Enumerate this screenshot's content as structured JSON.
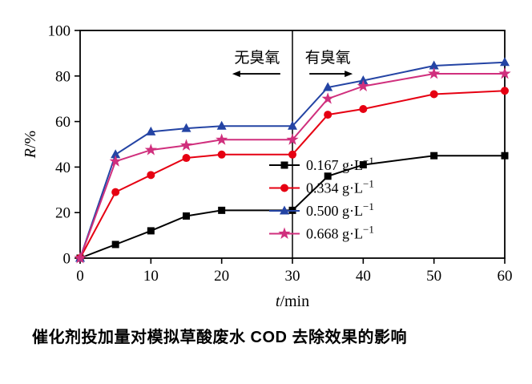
{
  "chart_data": {
    "type": "line",
    "title": "",
    "xlabel": "t/min",
    "ylabel": "R/%",
    "xlim": [
      0,
      60
    ],
    "ylim": [
      0,
      100
    ],
    "xticks": [
      0,
      10,
      20,
      30,
      40,
      50,
      60
    ],
    "yticks": [
      0,
      20,
      40,
      60,
      80,
      100
    ],
    "grid": false,
    "legend_position": "inside-lower-right",
    "divider_x": 30,
    "x": [
      0,
      5,
      10,
      15,
      20,
      30,
      35,
      40,
      50,
      60
    ],
    "series": [
      {
        "name": "0.167 g·L⁻¹",
        "color": "#000000",
        "marker": "square",
        "values": [
          0,
          6,
          12,
          18.5,
          21,
          21,
          36,
          41,
          45,
          45
        ]
      },
      {
        "name": "0.334 g·L⁻¹",
        "color": "#e60012",
        "marker": "circle",
        "values": [
          0,
          29,
          36.5,
          44,
          45.5,
          45.5,
          63,
          65.5,
          72,
          73.5
        ]
      },
      {
        "name": "0.500 g·L⁻¹",
        "color": "#2444a4",
        "marker": "triangle",
        "values": [
          0,
          45.5,
          55.5,
          57,
          58,
          58,
          75,
          78,
          84.5,
          86
        ]
      },
      {
        "name": "0.668 g·L⁻¹",
        "color": "#d02f7d",
        "marker": "star",
        "values": [
          0,
          42.5,
          47.5,
          49.5,
          52,
          52,
          70,
          75.5,
          81,
          81
        ]
      }
    ],
    "annotations": [
      {
        "text": "无臭氧",
        "x": 25,
        "y": 88,
        "arrow": "left"
      },
      {
        "text": "有臭氧",
        "x": 35,
        "y": 88,
        "arrow": "right"
      }
    ]
  },
  "caption": {
    "text": "催化剂投加量对模拟草酸废水 COD 去除效果的影响"
  }
}
